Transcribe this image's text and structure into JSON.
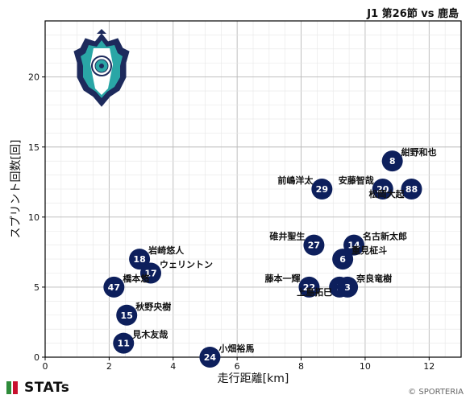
{
  "header": {
    "title": "J1 第26節 vs 鹿島"
  },
  "footer": {
    "logo_text": "STATs",
    "copyright": "© SPORTERIA"
  },
  "colors": {
    "marker": "#0d1f5c",
    "marker_text": "#ffffff",
    "grid": "#cfcfcf",
    "axis": "#000000",
    "stats_green": "#2e8b3a",
    "stats_red": "#c8102e"
  },
  "crest_icon": "avispa-fukuoka-crest",
  "chart_data": {
    "type": "scatter",
    "title": "",
    "xlabel": "走行距離[km]",
    "ylabel": "スプリント回数[回]",
    "xlim": [
      0,
      13
    ],
    "ylim": [
      0,
      24
    ],
    "xticks": [
      0,
      2,
      4,
      6,
      8,
      10,
      12
    ],
    "yticks": [
      0,
      5,
      10,
      15,
      20
    ],
    "grid": true,
    "points": [
      {
        "number": "8",
        "name": "紺野和也",
        "x": 10.85,
        "y": 14,
        "label_pos": "upper-right"
      },
      {
        "number": "29",
        "name": "前嶋洋太",
        "x": 8.65,
        "y": 12,
        "label_pos": "upper-left"
      },
      {
        "number": "20",
        "name": "安藤智哉",
        "x": 10.55,
        "y": 12,
        "label_pos": "upper-left"
      },
      {
        "number": "88",
        "name": "松岡大起",
        "x": 11.45,
        "y": 12,
        "label_pos": "lower-left"
      },
      {
        "number": "27",
        "name": "碓井聖生",
        "x": 8.4,
        "y": 8,
        "label_pos": "upper-left"
      },
      {
        "number": "14",
        "name": "名古新太郎",
        "x": 9.65,
        "y": 8,
        "label_pos": "upper-right"
      },
      {
        "number": "6",
        "name": "重見柾斗",
        "x": 9.3,
        "y": 7,
        "label_pos": "upper-right"
      },
      {
        "number": "22",
        "name": "藤本一輝",
        "x": 8.25,
        "y": 5,
        "label_pos": "upper-left"
      },
      {
        "number": "5",
        "name": "上島拓巳",
        "x": 9.2,
        "y": 5,
        "label_pos": "lower-left"
      },
      {
        "number": "3",
        "name": "奈良竜樹",
        "x": 9.45,
        "y": 5,
        "label_pos": "upper-right"
      },
      {
        "number": "18",
        "name": "岩崎悠人",
        "x": 2.95,
        "y": 7,
        "label_pos": "upper-right"
      },
      {
        "number": "17",
        "name": "ウェリントン",
        "x": 3.3,
        "y": 6,
        "label_pos": "upper-right"
      },
      {
        "number": "47",
        "name": "橋本悠",
        "x": 2.15,
        "y": 5,
        "label_pos": "upper-right"
      },
      {
        "number": "15",
        "name": "秋野央樹",
        "x": 2.55,
        "y": 3,
        "label_pos": "upper-right"
      },
      {
        "number": "11",
        "name": "見木友哉",
        "x": 2.45,
        "y": 1,
        "label_pos": "upper-right"
      },
      {
        "number": "24",
        "name": "小畑裕馬",
        "x": 5.15,
        "y": 0,
        "label_pos": "upper-right"
      }
    ]
  }
}
